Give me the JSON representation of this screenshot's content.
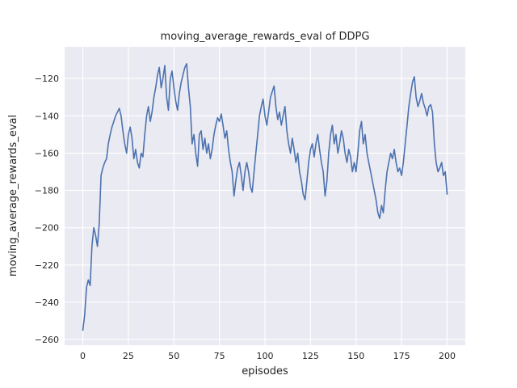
{
  "chart_data": {
    "type": "line",
    "title": "moving_average_rewards_eval of DDPG",
    "xlabel": "episodes",
    "ylabel": "moving_average_rewards_eval",
    "xlim": [
      -10,
      210
    ],
    "ylim": [
      -263,
      -103
    ],
    "x_ticks": [
      0,
      25,
      50,
      75,
      100,
      125,
      150,
      175,
      200
    ],
    "y_ticks": [
      -260,
      -240,
      -220,
      -200,
      -180,
      -160,
      -140,
      -120
    ],
    "grid": true,
    "legend": "none",
    "colors": {
      "line": "#4c72b0",
      "plot_background": "#eaeaf2",
      "grid": "#ffffff",
      "text": "#262626",
      "figure_background": "#ffffff"
    },
    "series": [
      {
        "name": "moving_average_rewards_eval",
        "x_start": 0,
        "x_step": 1,
        "y": [
          -255,
          -247,
          -232,
          -228,
          -231,
          -210,
          -200,
          -204,
          -210,
          -198,
          -172,
          -168,
          -165,
          -163,
          -155,
          -150,
          -146,
          -143,
          -140,
          -138,
          -136,
          -140,
          -148,
          -155,
          -160,
          -150,
          -146,
          -152,
          -163,
          -158,
          -165,
          -168,
          -160,
          -162,
          -150,
          -140,
          -135,
          -143,
          -138,
          -130,
          -125,
          -118,
          -114,
          -125,
          -120,
          -113,
          -130,
          -137,
          -120,
          -116,
          -125,
          -132,
          -137,
          -128,
          -122,
          -118,
          -114,
          -112,
          -125,
          -135,
          -155,
          -150,
          -160,
          -167,
          -150,
          -148,
          -158,
          -152,
          -160,
          -155,
          -163,
          -158,
          -150,
          -145,
          -141,
          -143,
          -139,
          -145,
          -152,
          -148,
          -158,
          -165,
          -170,
          -183,
          -175,
          -168,
          -165,
          -172,
          -180,
          -170,
          -165,
          -170,
          -178,
          -181,
          -170,
          -160,
          -150,
          -140,
          -135,
          -131,
          -140,
          -145,
          -138,
          -130,
          -127,
          -124,
          -135,
          -142,
          -138,
          -145,
          -140,
          -135,
          -148,
          -155,
          -160,
          -152,
          -158,
          -165,
          -160,
          -170,
          -175,
          -182,
          -185,
          -175,
          -165,
          -158,
          -155,
          -162,
          -155,
          -150,
          -158,
          -165,
          -170,
          -183,
          -175,
          -160,
          -150,
          -145,
          -155,
          -150,
          -160,
          -155,
          -148,
          -152,
          -160,
          -165,
          -158,
          -162,
          -170,
          -165,
          -170,
          -160,
          -148,
          -143,
          -155,
          -150,
          -160,
          -165,
          -170,
          -175,
          -180,
          -185,
          -192,
          -195,
          -188,
          -192,
          -180,
          -170,
          -165,
          -160,
          -163,
          -158,
          -165,
          -170,
          -168,
          -172,
          -165,
          -155,
          -145,
          -135,
          -128,
          -122,
          -119,
          -130,
          -135,
          -132,
          -128,
          -133,
          -136,
          -140,
          -135,
          -134,
          -138,
          -155,
          -165,
          -170,
          -168,
          -165,
          -172,
          -170,
          -182
        ]
      }
    ]
  }
}
